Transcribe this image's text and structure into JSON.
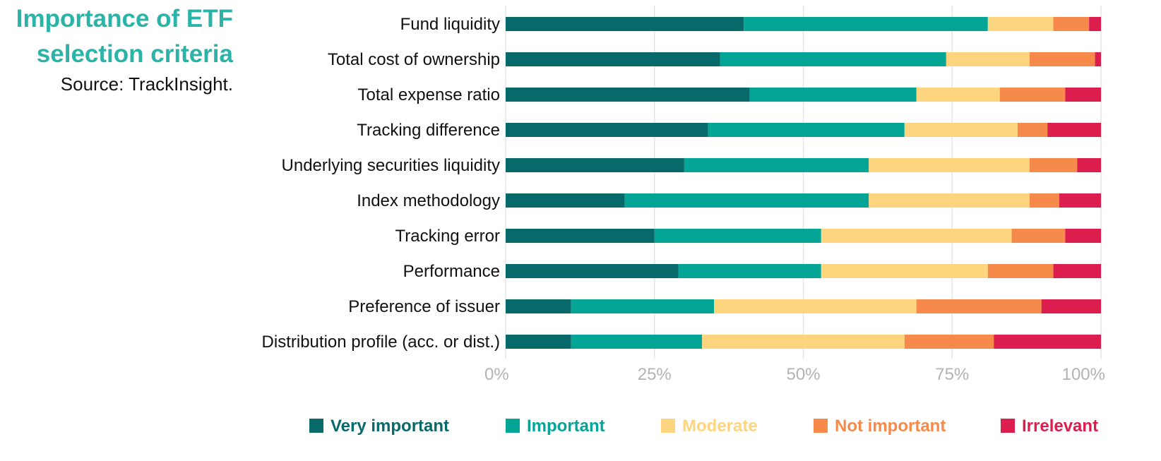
{
  "title_line1": "Importance of ETF",
  "title_line2": "selection criteria",
  "source": "Source: TrackInsight.",
  "chart_data": {
    "type": "bar",
    "orientation": "horizontal",
    "stacked": true,
    "title": "Importance of ETF selection criteria",
    "categories": [
      "Fund liquidity",
      "Total cost of ownership",
      "Total expense ratio",
      "Tracking difference",
      "Underlying securities liquidity",
      "Index methodology",
      "Tracking error",
      "Performance",
      "Preference of issuer",
      "Distribution profile (acc. or dist.)"
    ],
    "series": [
      {
        "name": "Very important",
        "color": "#07696a",
        "values": [
          40,
          36,
          41,
          34,
          30,
          20,
          25,
          29,
          11,
          11
        ]
      },
      {
        "name": "Important",
        "color": "#04a597",
        "values": [
          41,
          38,
          28,
          33,
          31,
          41,
          28,
          24,
          24,
          22
        ]
      },
      {
        "name": "Moderate",
        "color": "#fdd57f",
        "values": [
          11,
          14,
          14,
          19,
          27,
          27,
          32,
          28,
          34,
          34
        ]
      },
      {
        "name": "Not important",
        "color": "#f58a4b",
        "values": [
          6,
          11,
          11,
          5,
          8,
          5,
          9,
          11,
          21,
          15
        ]
      },
      {
        "name": "Irrelevant",
        "color": "#db1e4d",
        "values": [
          2,
          1,
          6,
          9,
          4,
          7,
          6,
          8,
          10,
          18
        ]
      }
    ],
    "xlim": [
      0,
      100
    ],
    "ticks": [
      "0%",
      "25%",
      "50%",
      "75%",
      "100%"
    ],
    "tick_values": [
      0,
      25,
      50,
      75,
      100
    ],
    "grid": true,
    "legend_position": "bottom"
  }
}
